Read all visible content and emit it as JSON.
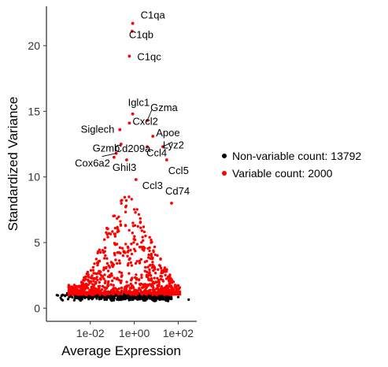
{
  "chart_data": {
    "type": "scatter",
    "xlabel": "Average Expression",
    "ylabel": "Standardized Variance",
    "x_scale": "log10",
    "xlim": [
      0.0001,
      700
    ],
    "ylim": [
      -1.0,
      23
    ],
    "x_ticks": [
      {
        "value": 0.01,
        "label": "1e-02"
      },
      {
        "value": 1,
        "label": "1e+00"
      },
      {
        "value": 100,
        "label": "1e+02"
      }
    ],
    "y_ticks": [
      {
        "value": 0,
        "label": "0"
      },
      {
        "value": 5,
        "label": "5"
      },
      {
        "value": 10,
        "label": "10"
      },
      {
        "value": 15,
        "label": "15"
      },
      {
        "value": 20,
        "label": "20"
      }
    ],
    "grid": false,
    "legend_position": "right",
    "series": [
      {
        "name": "Non-variable count: 13792",
        "color": "#000000",
        "approximate_distribution": {
          "x_range": [
            0.0003,
            50
          ],
          "y_center": 0.9,
          "y_spread": 0.4,
          "outliers": [
            [
              300,
              0.65
            ],
            [
              100,
              0.85
            ],
            [
              0.0003,
              1.0
            ]
          ]
        }
      },
      {
        "name": "Variable count: 2000",
        "color": "#ff0000",
        "approximate_distribution": {
          "x_range": [
            0.001,
            120
          ],
          "y_floor": 1.0,
          "y_max_typical": 9.5
        }
      }
    ],
    "labeled_points": [
      {
        "gene": "C1qa",
        "x": 0.85,
        "y": 21.7
      },
      {
        "gene": "C1qb",
        "x": 0.8,
        "y": 21.1
      },
      {
        "gene": "C1qc",
        "x": 0.6,
        "y": 19.2
      },
      {
        "gene": "Iglc1",
        "x": 0.85,
        "y": 14.8
      },
      {
        "gene": "Gzma",
        "x": 3.9,
        "y": 14.3
      },
      {
        "gene": "Siglech",
        "x": 0.22,
        "y": 13.6
      },
      {
        "gene": "Cxcl2",
        "x": 0.6,
        "y": 14.1
      },
      {
        "gene": "Apoe",
        "x": 7.0,
        "y": 13.1
      },
      {
        "gene": "Cd209a",
        "x": 0.25,
        "y": 12.5
      },
      {
        "gene": "Ccl4",
        "x": 3.9,
        "y": 12.3
      },
      {
        "gene": "Lyz2",
        "x": 20,
        "y": 12.3
      },
      {
        "gene": "Gzmb",
        "x": 0.15,
        "y": 11.8
      },
      {
        "gene": "Cox6a2",
        "x": 0.12,
        "y": 11.5
      },
      {
        "gene": "Ghil3",
        "x": 0.45,
        "y": 11.3
      },
      {
        "gene": "Ccl5",
        "x": 30,
        "y": 11.3
      },
      {
        "gene": "Ccl3",
        "x": 1.2,
        "y": 9.8
      },
      {
        "gene": "Cd74",
        "x": 50,
        "y": 8.0
      }
    ]
  }
}
